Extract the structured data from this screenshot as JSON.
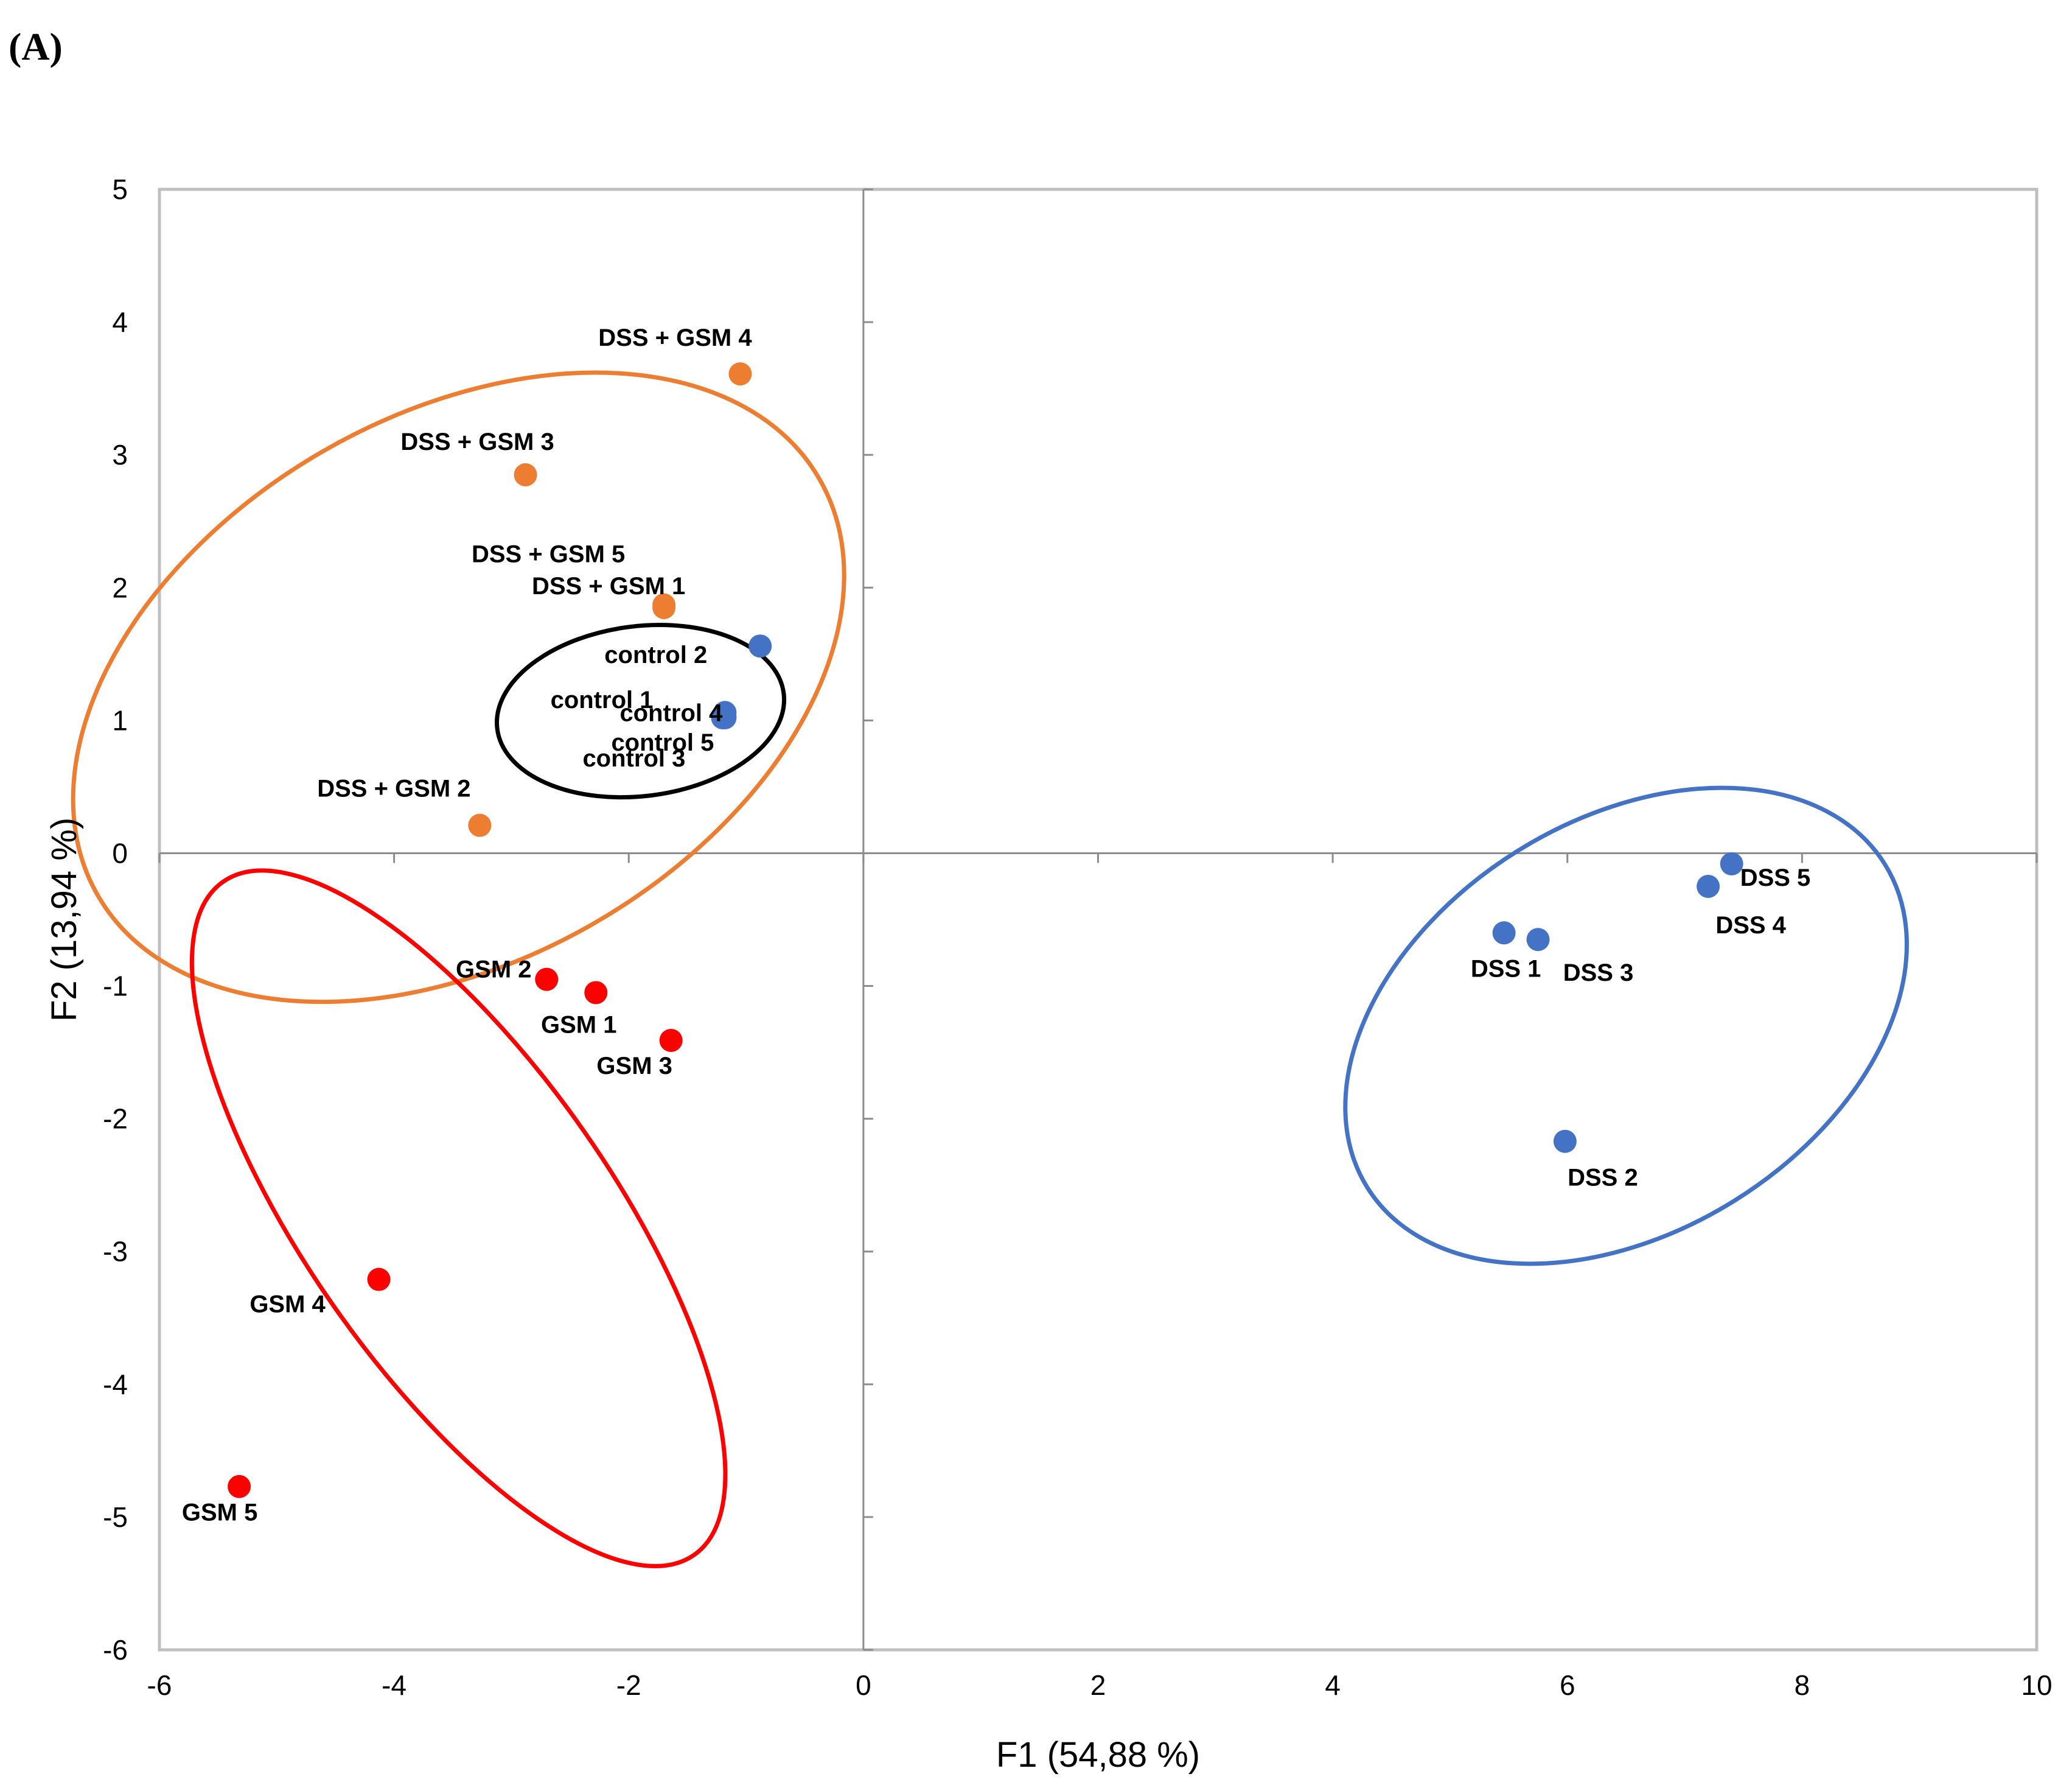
{
  "panel_label": "(A)",
  "chart_data": {
    "type": "scatter",
    "xlabel": "F1 (54,88 %)",
    "ylabel": "F2 (13,94 %)",
    "xlim": [
      -6,
      10
    ],
    "ylim": [
      -6,
      5
    ],
    "xticks": [
      -6,
      -4,
      -2,
      0,
      2,
      4,
      6,
      8,
      10
    ],
    "yticks": [
      5,
      4,
      3,
      2,
      1,
      0,
      -1,
      -2,
      -3,
      -4,
      -5,
      -6
    ],
    "grid": false,
    "groups": [
      {
        "name": "DSS + GSM",
        "color": "#ED7D31",
        "ellipse": {
          "cx": -3.45,
          "cy": 1.25,
          "rx": 3.55,
          "ry": 2.05,
          "angle": 30
        },
        "points": [
          {
            "label": "DSS + GSM 1",
            "x": -1.7,
            "y": 1.85
          },
          {
            "label": "DSS + GSM 2",
            "x": -3.27,
            "y": 0.21
          },
          {
            "label": "DSS + GSM 3",
            "x": -2.88,
            "y": 2.85
          },
          {
            "label": "DSS + GSM 4",
            "x": -1.05,
            "y": 3.61
          },
          {
            "label": "DSS + GSM 5",
            "x": -1.7,
            "y": 1.87
          }
        ]
      },
      {
        "name": "control",
        "color": "#4472C4",
        "ellipse_color": "#000000",
        "ellipse": {
          "cx": -1.9,
          "cy": 1.07,
          "rx": 1.23,
          "ry": 0.64,
          "angle": 7
        },
        "points": [
          {
            "label": "control 1",
            "x": -1.2,
            "y": 1.02
          },
          {
            "label": "control 2",
            "x": -0.88,
            "y": 1.56
          },
          {
            "label": "control 3",
            "x": -1.18,
            "y": 1.02
          },
          {
            "label": "control 4",
            "x": -1.18,
            "y": 1.06
          },
          {
            "label": "control 5",
            "x": -1.18,
            "y": 1.03
          }
        ]
      },
      {
        "name": "GSM",
        "color": "#FF0000",
        "ellipse": {
          "cx": -3.45,
          "cy": -2.75,
          "rx": 3.5,
          "ry": 1.15,
          "angle": -55
        },
        "points": [
          {
            "label": "GSM 1",
            "x": -2.28,
            "y": -1.05
          },
          {
            "label": "GSM 2",
            "x": -2.7,
            "y": -0.95
          },
          {
            "label": "GSM 3",
            "x": -1.64,
            "y": -1.41
          },
          {
            "label": "GSM 4",
            "x": -4.13,
            "y": -3.21
          },
          {
            "label": "GSM 5",
            "x": -5.32,
            "y": -4.77
          }
        ]
      },
      {
        "name": "DSS",
        "color": "#4472C4",
        "ellipse": {
          "cx": 6.5,
          "cy": -1.3,
          "rx": 2.6,
          "ry": 1.55,
          "angle": 32
        },
        "points": [
          {
            "label": "DSS 1",
            "x": 5.46,
            "y": -0.6
          },
          {
            "label": "DSS 2",
            "x": 5.98,
            "y": -2.17
          },
          {
            "label": "DSS 3",
            "x": 5.75,
            "y": -0.65
          },
          {
            "label": "DSS 4",
            "x": 7.2,
            "y": -0.25
          },
          {
            "label": "DSS 5",
            "x": 7.4,
            "y": -0.08
          }
        ]
      }
    ]
  }
}
